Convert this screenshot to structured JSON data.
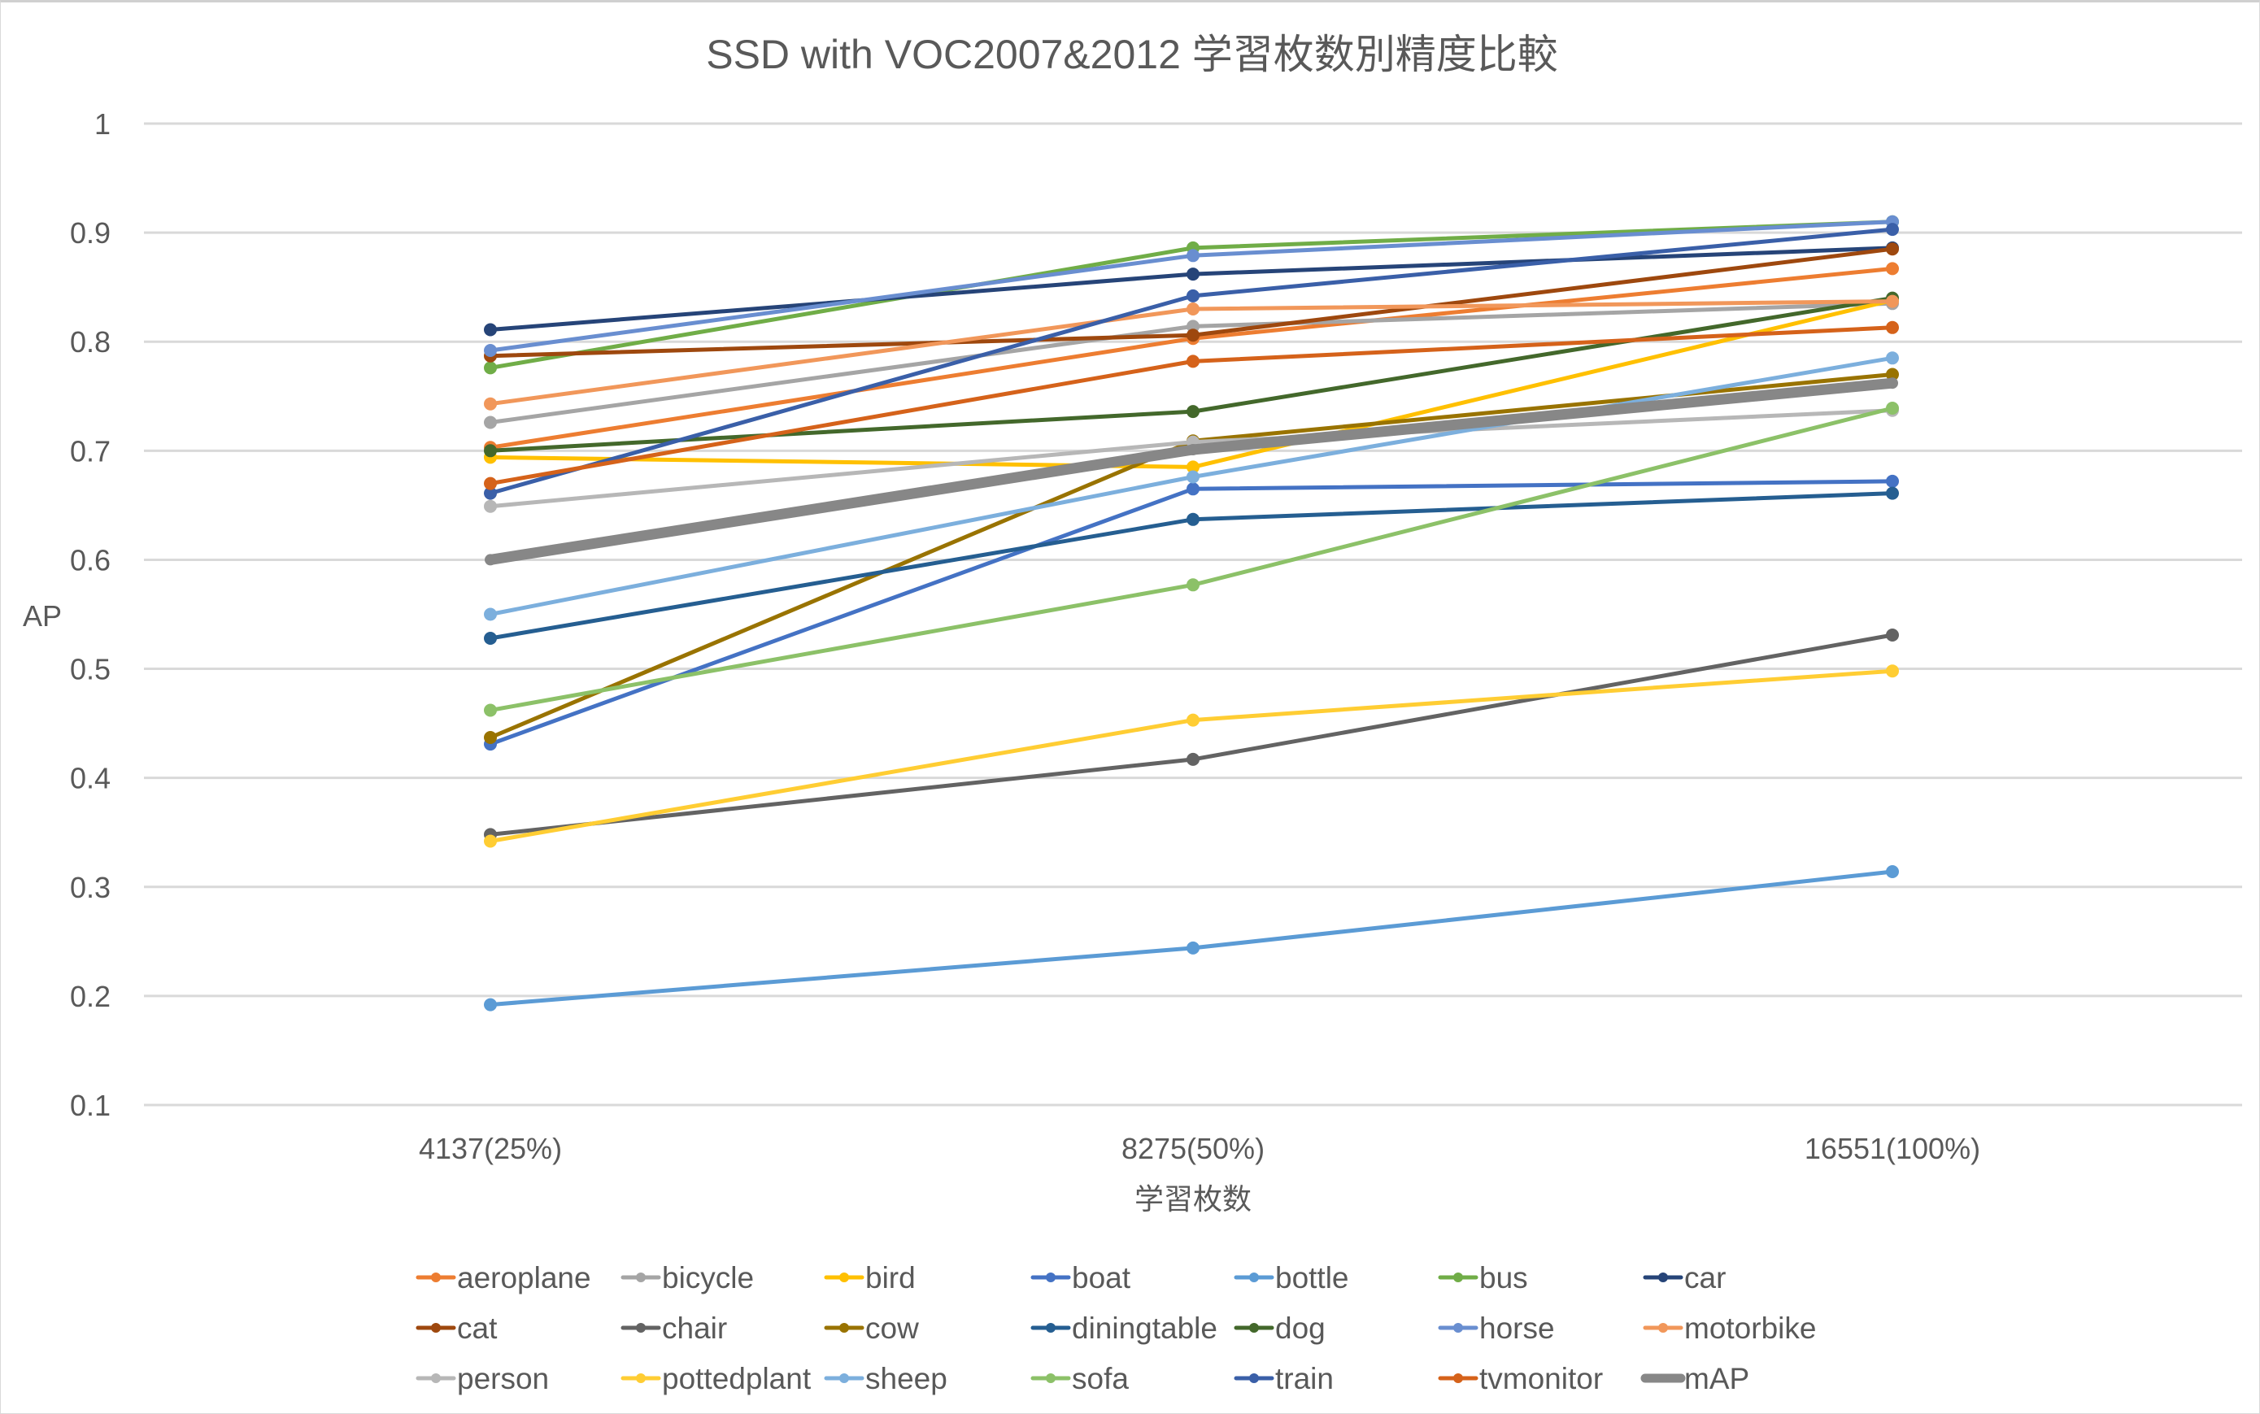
{
  "chart_data": {
    "type": "line",
    "title": "SSD with VOC2007&2012 学習枚数別精度比較",
    "xlabel": "学習枚数",
    "ylabel": "AP",
    "categories": [
      "4137(25%)",
      "8275(50%)",
      "16551(100%)"
    ],
    "ylim": [
      0.1,
      1.0
    ],
    "yticks": [
      "0.1",
      "0.2",
      "0.3",
      "0.4",
      "0.5",
      "0.6",
      "0.7",
      "0.8",
      "0.9",
      "1"
    ],
    "grid": true,
    "legend_position": "bottom",
    "series": [
      {
        "name": "aeroplane",
        "color": "#ED7D31",
        "values": [
          0.703,
          0.803,
          0.867
        ]
      },
      {
        "name": "bicycle",
        "color": "#A5A5A5",
        "values": [
          0.726,
          0.814,
          0.835
        ]
      },
      {
        "name": "bird",
        "color": "#FFC000",
        "values": [
          0.694,
          0.685,
          0.838
        ]
      },
      {
        "name": "boat",
        "color": "#4472C4",
        "values": [
          0.431,
          0.665,
          0.672
        ]
      },
      {
        "name": "bottle",
        "color": "#5B9BD5",
        "values": [
          0.192,
          0.244,
          0.314
        ]
      },
      {
        "name": "bus",
        "color": "#70AD47",
        "values": [
          0.776,
          0.886,
          0.91
        ]
      },
      {
        "name": "car",
        "color": "#264478",
        "values": [
          0.811,
          0.862,
          0.886
        ]
      },
      {
        "name": "cat",
        "color": "#9E480E",
        "values": [
          0.787,
          0.806,
          0.885
        ]
      },
      {
        "name": "chair",
        "color": "#636363",
        "values": [
          0.348,
          0.417,
          0.531
        ]
      },
      {
        "name": "cow",
        "color": "#997300",
        "values": [
          0.437,
          0.709,
          0.77
        ]
      },
      {
        "name": "diningtable",
        "color": "#255E91",
        "values": [
          0.528,
          0.637,
          0.661
        ]
      },
      {
        "name": "dog",
        "color": "#43682B",
        "values": [
          0.7,
          0.736,
          0.84
        ]
      },
      {
        "name": "horse",
        "color": "#698ED0",
        "values": [
          0.792,
          0.879,
          0.91
        ]
      },
      {
        "name": "motorbike",
        "color": "#F1975A",
        "values": [
          0.743,
          0.83,
          0.837
        ]
      },
      {
        "name": "person",
        "color": "#B7B7B7",
        "values": [
          0.649,
          0.708,
          0.737
        ]
      },
      {
        "name": "pottedplant",
        "color": "#FFCD33",
        "values": [
          0.342,
          0.453,
          0.498
        ]
      },
      {
        "name": "sheep",
        "color": "#7CAFDD",
        "values": [
          0.55,
          0.676,
          0.785
        ]
      },
      {
        "name": "sofa",
        "color": "#8CC168",
        "values": [
          0.462,
          0.577,
          0.739
        ]
      },
      {
        "name": "train",
        "color": "#3A5FA8",
        "values": [
          0.661,
          0.842,
          0.903
        ]
      },
      {
        "name": "tvmonitor",
        "color": "#D5621A",
        "values": [
          0.67,
          0.782,
          0.813
        ]
      },
      {
        "name": "mAP",
        "color": "#878787",
        "values": [
          0.6,
          0.701,
          0.762
        ],
        "thick": true
      }
    ]
  }
}
